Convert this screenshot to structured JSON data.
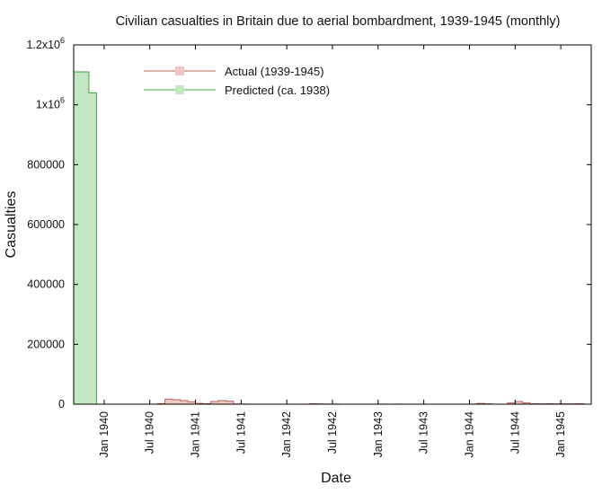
{
  "chart_data": {
    "type": "area",
    "title": "Civilian casualties in Britain due to aerial bombardment, 1939-1945 (monthly)",
    "xlabel": "Date",
    "ylabel": "Casualties",
    "ylim": [
      0,
      1200000
    ],
    "xlim": [
      "1939-09",
      "1945-05"
    ],
    "grid": false,
    "legend_position": "top-left",
    "y_ticks": [
      {
        "label": "0",
        "value": 0
      },
      {
        "label": "200000",
        "value": 200000
      },
      {
        "label": "400000",
        "value": 400000
      },
      {
        "label": "600000",
        "value": 600000
      },
      {
        "label": "800000",
        "value": 800000
      },
      {
        "label": "1x10",
        "sup": "6",
        "value": 1000000
      },
      {
        "label": "1.2x10",
        "sup": "6",
        "value": 1200000
      }
    ],
    "x_ticks": [
      {
        "label": "Jan 1940",
        "date": "1940-01"
      },
      {
        "label": "Jul 1940",
        "date": "1940-07"
      },
      {
        "label": "Jan 1941",
        "date": "1941-01"
      },
      {
        "label": "Jul 1941",
        "date": "1941-07"
      },
      {
        "label": "Jan 1942",
        "date": "1942-01"
      },
      {
        "label": "Jul 1942",
        "date": "1942-07"
      },
      {
        "label": "Jan 1943",
        "date": "1943-01"
      },
      {
        "label": "Jul 1943",
        "date": "1943-07"
      },
      {
        "label": "Jan 1944",
        "date": "1944-01"
      },
      {
        "label": "Jul 1944",
        "date": "1944-07"
      },
      {
        "label": "Jan 1945",
        "date": "1945-01"
      }
    ],
    "series": [
      {
        "name": "Actual (1939-1945)",
        "color": "#b5615a",
        "fill": "#f0c8c4",
        "points": [
          [
            "1940-08",
            2000
          ],
          [
            "1940-09",
            17000
          ],
          [
            "1940-10",
            15000
          ],
          [
            "1940-11",
            12000
          ],
          [
            "1940-12",
            8000
          ],
          [
            "1941-01",
            2500
          ],
          [
            "1941-02",
            1500
          ],
          [
            "1941-03",
            9000
          ],
          [
            "1941-04",
            12000
          ],
          [
            "1941-05",
            10000
          ],
          [
            "1941-06",
            900
          ],
          [
            "1941-07",
            500
          ],
          [
            "1942-04",
            1500
          ],
          [
            "1942-05",
            800
          ],
          [
            "1942-06",
            500
          ],
          [
            "1942-07",
            500
          ],
          [
            "1943-01",
            500
          ],
          [
            "1943-03",
            500
          ],
          [
            "1944-01",
            400
          ],
          [
            "1944-02",
            2500
          ],
          [
            "1944-03",
            1000
          ],
          [
            "1944-06",
            4000
          ],
          [
            "1944-07",
            9000
          ],
          [
            "1944-08",
            4000
          ],
          [
            "1944-09",
            1500
          ],
          [
            "1944-10",
            1000
          ],
          [
            "1944-11",
            1500
          ],
          [
            "1944-12",
            1200
          ],
          [
            "1945-01",
            1200
          ],
          [
            "1945-02",
            1300
          ],
          [
            "1945-03",
            1800
          ]
        ]
      },
      {
        "name": "Predicted (ca. 1938)",
        "color": "#3ea63e",
        "fill": "#c3e6c3",
        "points": [
          [
            "1939-09",
            1110000
          ],
          [
            "1939-10",
            1110000
          ],
          [
            "1939-11",
            1040000
          ]
        ]
      }
    ]
  }
}
